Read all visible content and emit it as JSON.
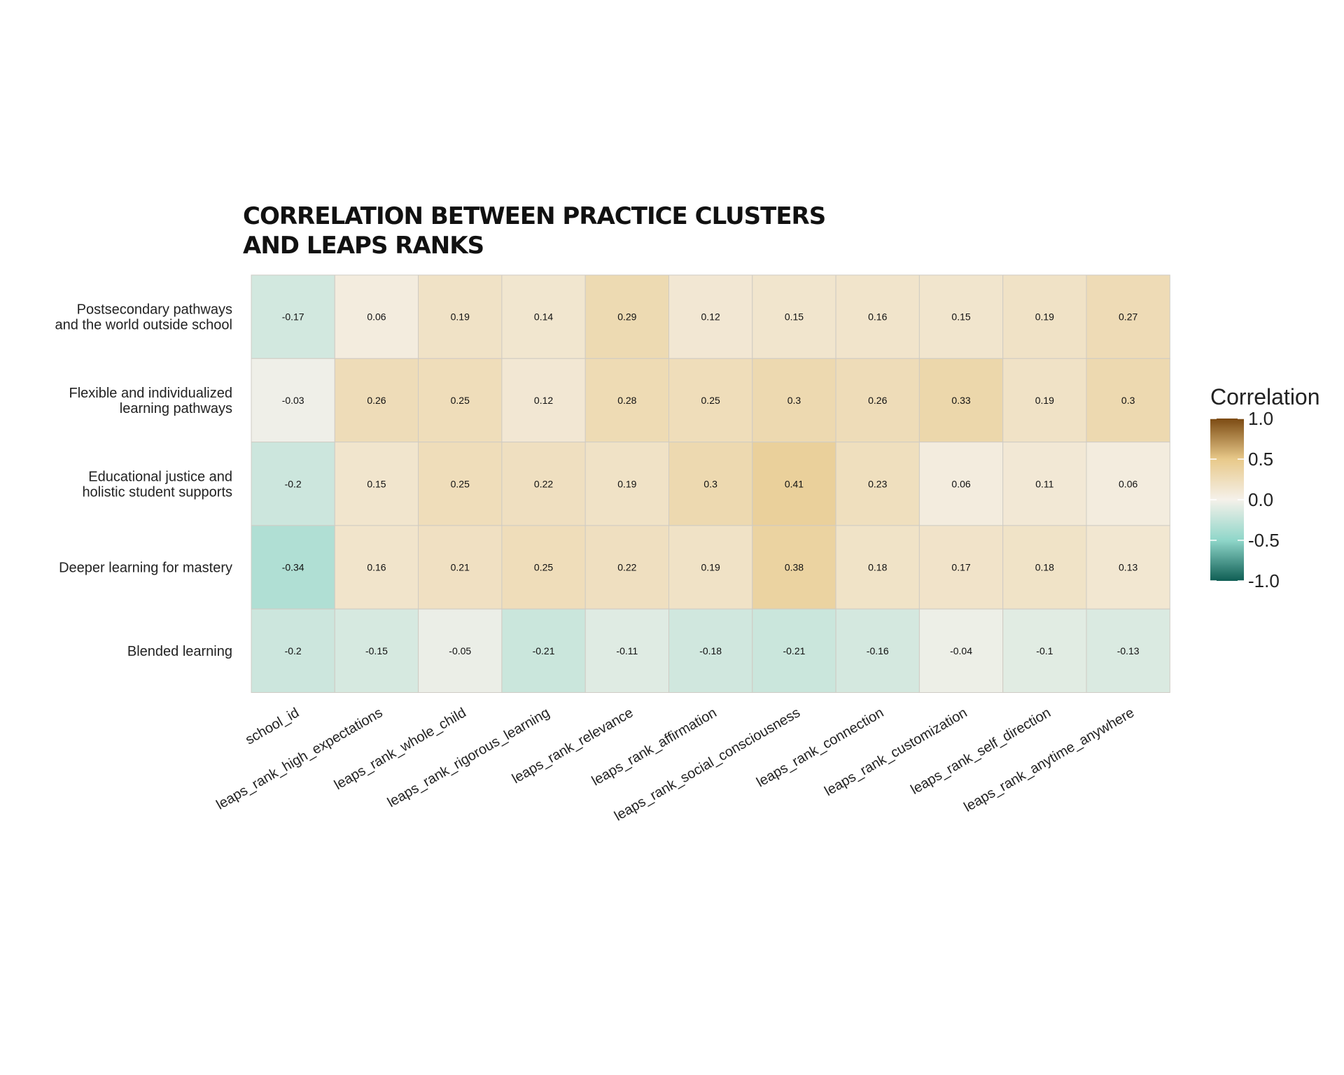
{
  "chart_data": {
    "type": "heatmap",
    "title_lines": [
      "CORRELATION BETWEEN PRACTICE CLUSTERS",
      "AND LEAPS RANKS"
    ],
    "rows": [
      [
        "Postsecondary pathways",
        "and the world outside school"
      ],
      [
        "Flexible and individualized",
        "learning pathways"
      ],
      [
        "Educational justice and",
        "holistic student supports"
      ],
      [
        "Deeper learning for mastery"
      ],
      [
        "Blended learning"
      ]
    ],
    "columns": [
      "school_id",
      "leaps_rank_high_expectations",
      "leaps_rank_whole_child",
      "leaps_rank_rigorous_learning",
      "leaps_rank_relevance",
      "leaps_rank_affirmation",
      "leaps_rank_social_consciousness",
      "leaps_rank_connection",
      "leaps_rank_customization",
      "leaps_rank_self_direction",
      "leaps_rank_anytime_anywhere"
    ],
    "values": [
      [
        -0.17,
        0.06,
        0.19,
        0.14,
        0.29,
        0.12,
        0.15,
        0.16,
        0.15,
        0.19,
        0.27
      ],
      [
        -0.03,
        0.26,
        0.25,
        0.12,
        0.28,
        0.25,
        0.3,
        0.26,
        0.33,
        0.19,
        0.3
      ],
      [
        -0.2,
        0.15,
        0.25,
        0.22,
        0.19,
        0.3,
        0.41,
        0.23,
        0.06,
        0.11,
        0.06
      ],
      [
        -0.34,
        0.16,
        0.21,
        0.25,
        0.22,
        0.19,
        0.38,
        0.18,
        0.17,
        0.18,
        0.13
      ],
      [
        -0.2,
        -0.15,
        -0.05,
        -0.21,
        -0.11,
        -0.18,
        -0.21,
        -0.16,
        -0.04,
        -0.1,
        -0.13
      ]
    ],
    "legend": {
      "title": "Correlation",
      "range": [
        -1,
        1
      ],
      "ticks": [
        1.0,
        0.5,
        0.0,
        -0.5,
        -1.0
      ],
      "tick_labels": [
        "1.0",
        "0.5",
        "0.0",
        "-0.5",
        "-1.0"
      ],
      "colors": {
        "max": "#7b4a12",
        "high": "#e8c98a",
        "mid": "#f5f1ea",
        "low": "#8fd6c9",
        "min": "#0f5e54"
      },
      "placement": "right"
    },
    "grid": false
  }
}
